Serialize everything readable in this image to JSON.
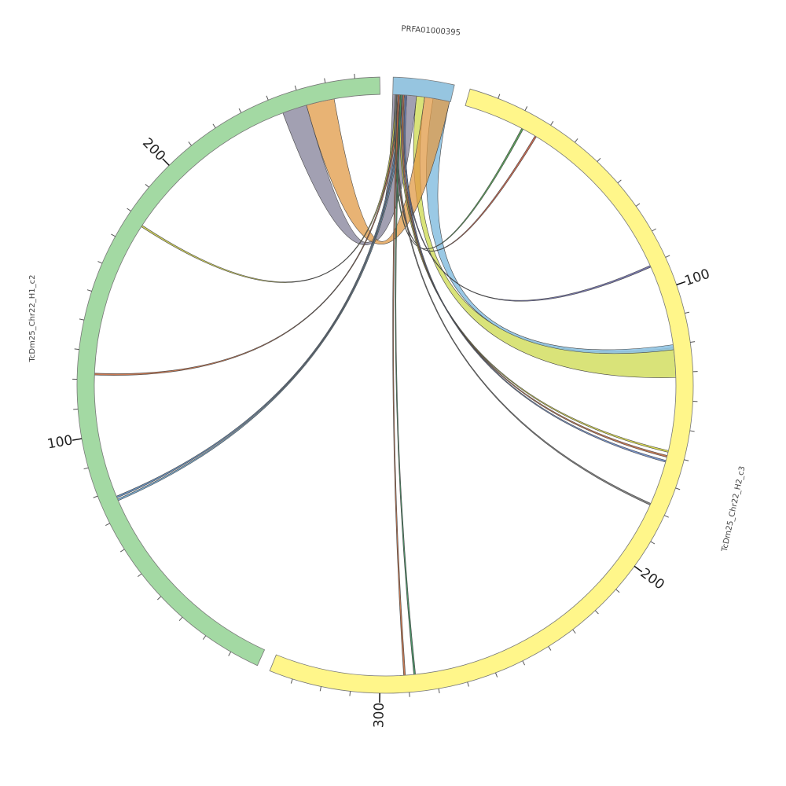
{
  "sectors": [
    {
      "label": "PRFA01000395"
    },
    {
      "label": "TcDm25_Chr22_H2_c3",
      "ticks": [
        100,
        200,
        300
      ]
    },
    {
      "label": "TcDm25_Chr22_H1_c2",
      "ticks": [
        100,
        200
      ]
    }
  ]
}
